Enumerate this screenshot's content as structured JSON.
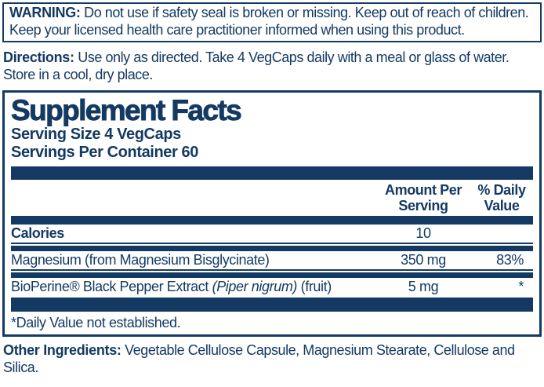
{
  "colors": {
    "ink": "#143a63",
    "paper": "#ffffff"
  },
  "warning": {
    "label": "WARNING:",
    "text": " Do not use if safety seal is broken or missing. Keep out of reach of children. Keep your licensed health care practitioner informed when using this product."
  },
  "directions": {
    "label": "Directions:",
    "text": " Use only as directed. Take 4 VegCaps daily with a meal or glass of water. Store in a cool, dry place."
  },
  "panel": {
    "title": "Supplement Facts",
    "serving_size": "Serving Size 4 VegCaps",
    "servings_per_container": "Servings Per Container 60",
    "header": {
      "amount_line1": "Amount Per",
      "amount_line2": "Serving",
      "dv_line1": "% Daily",
      "dv_line2": "Value"
    },
    "rows": {
      "calories": {
        "name": "Calories",
        "amount": "10",
        "dv": ""
      },
      "magnesium": {
        "name": "Magnesium (from Magnesium Bisglycinate)",
        "amount": "350 mg",
        "dv": "83%"
      },
      "bioperine": {
        "name_prefix": "BioPerine® Black Pepper Extract ",
        "name_italic": "(Piper nigrum)",
        "name_suffix": " (fruit)",
        "amount": "5 mg",
        "dv": "*"
      }
    },
    "footnote": "*Daily Value not established."
  },
  "other_ingredients": {
    "label": "Other Ingredients:",
    "text": " Vegetable Cellulose Capsule, Magnesium Stearate, Cellulose and Silica."
  }
}
